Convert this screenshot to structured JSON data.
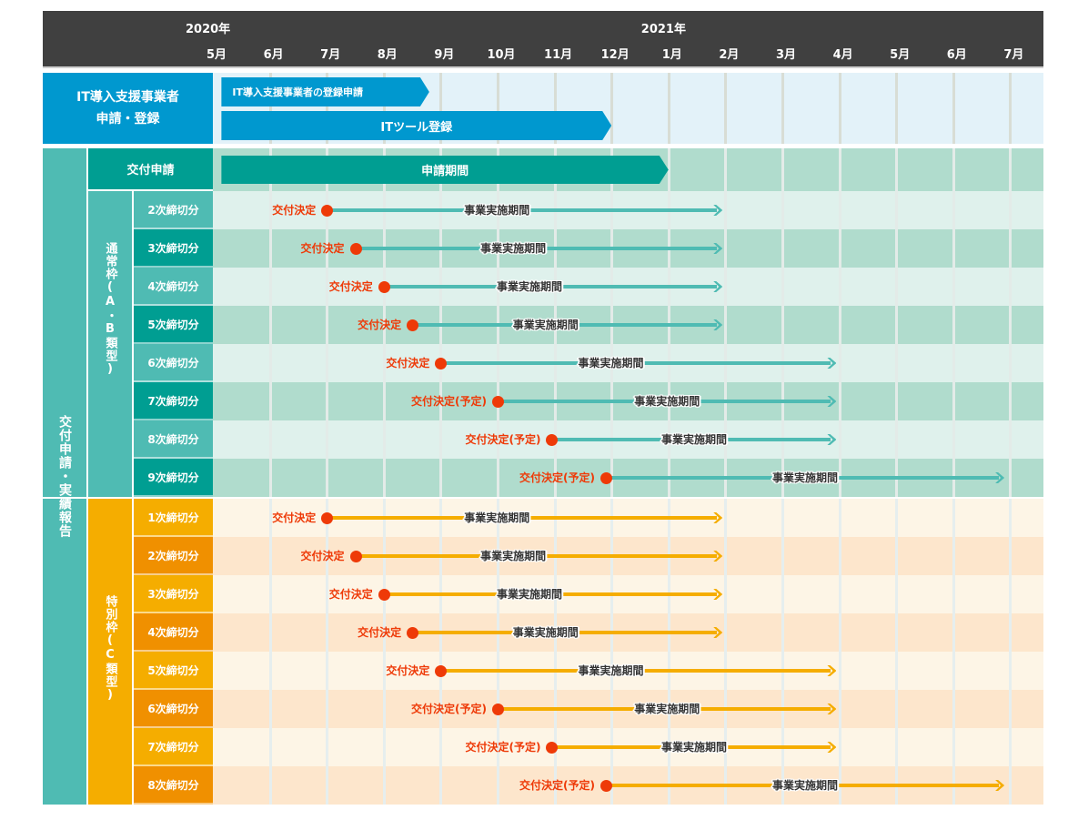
{
  "colors": {
    "header_bg": "#404040",
    "blue": "#0098cf",
    "blue_bg": "#e3f2f9",
    "teal_dark": "#009e92",
    "teal_mid": "#4fbbb3",
    "teal_row_light": "#dff1ec",
    "teal_row_dark": "#b0dccd",
    "teal_arrow": "#4fbbb3",
    "orange_light": "#f5ad00",
    "orange_dark": "#f09000",
    "orange_row_light": "#fdf5e6",
    "orange_row_dark": "#fde6cc",
    "orange_arrow": "#f5ad00",
    "decision_red": "#ee3a08"
  },
  "chart_data": {
    "type": "gantt",
    "time_unit": "months since start of 2020年5月",
    "years": [
      {
        "label": "2020年",
        "month_index": 0
      },
      {
        "label": "2021年",
        "month_index": 8
      }
    ],
    "months": [
      "5月",
      "6月",
      "7月",
      "8月",
      "9月",
      "10月",
      "11月",
      "12月",
      "1月",
      "2月",
      "3月",
      "4月",
      "5月",
      "6月",
      "7月"
    ],
    "xlim": [
      0,
      14.6
    ],
    "it_section": {
      "label_line1": "IT導入支援事業者",
      "label_line2": "申請・登録",
      "bars": [
        {
          "label": "IT導入支援事業者の登録申請",
          "start": 0.15,
          "end": 3.8
        },
        {
          "label": "ITツール登録",
          "start": 0.15,
          "end": 7.0
        }
      ]
    },
    "grant_section": {
      "label": "交付申請・実績報告",
      "application": {
        "row_label": "交付申請",
        "bar_label": "申請期間",
        "start": 0.15,
        "end": 8.0
      },
      "groups": [
        {
          "label": "通常枠(A・B類型)",
          "theme": "teal",
          "rows": [
            {
              "label": "2次締切分",
              "decision_label": "交付決定",
              "decision": 2.0,
              "end": 8.95,
              "period_label": "事業実施期間"
            },
            {
              "label": "3次締切分",
              "decision_label": "交付決定",
              "decision": 2.5,
              "end": 8.95,
              "period_label": "事業実施期間"
            },
            {
              "label": "4次締切分",
              "decision_label": "交付決定",
              "decision": 3.0,
              "end": 8.95,
              "period_label": "事業実施期間"
            },
            {
              "label": "5次締切分",
              "decision_label": "交付決定",
              "decision": 3.5,
              "end": 8.95,
              "period_label": "事業実施期間"
            },
            {
              "label": "6次締切分",
              "decision_label": "交付決定",
              "decision": 4.0,
              "end": 10.95,
              "period_label": "事業実施期間"
            },
            {
              "label": "7次締切分",
              "decision_label": "交付決定(予定)",
              "decision": 5.0,
              "end": 10.95,
              "period_label": "事業実施期間"
            },
            {
              "label": "8次締切分",
              "decision_label": "交付決定(予定)",
              "decision": 5.95,
              "end": 10.95,
              "period_label": "事業実施期間"
            },
            {
              "label": "9次締切分",
              "decision_label": "交付決定(予定)",
              "decision": 6.9,
              "end": 13.9,
              "period_label": "事業実施期間"
            }
          ]
        },
        {
          "label": "特別枠(C類型)",
          "theme": "orange",
          "rows": [
            {
              "label": "1次締切分",
              "decision_label": "交付決定",
              "decision": 2.0,
              "end": 8.95,
              "period_label": "事業実施期間"
            },
            {
              "label": "2次締切分",
              "decision_label": "交付決定",
              "decision": 2.5,
              "end": 8.95,
              "period_label": "事業実施期間"
            },
            {
              "label": "3次締切分",
              "decision_label": "交付決定",
              "decision": 3.0,
              "end": 8.95,
              "period_label": "事業実施期間"
            },
            {
              "label": "4次締切分",
              "decision_label": "交付決定",
              "decision": 3.5,
              "end": 8.95,
              "period_label": "事業実施期間"
            },
            {
              "label": "5次締切分",
              "decision_label": "交付決定",
              "decision": 4.0,
              "end": 10.95,
              "period_label": "事業実施期間"
            },
            {
              "label": "6次締切分",
              "decision_label": "交付決定(予定)",
              "decision": 5.0,
              "end": 10.95,
              "period_label": "事業実施期間"
            },
            {
              "label": "7次締切分",
              "decision_label": "交付決定(予定)",
              "decision": 5.95,
              "end": 10.95,
              "period_label": "事業実施期間"
            },
            {
              "label": "8次締切分",
              "decision_label": "交付決定(予定)",
              "decision": 6.9,
              "end": 13.9,
              "period_label": "事業実施期間"
            }
          ]
        }
      ]
    }
  }
}
